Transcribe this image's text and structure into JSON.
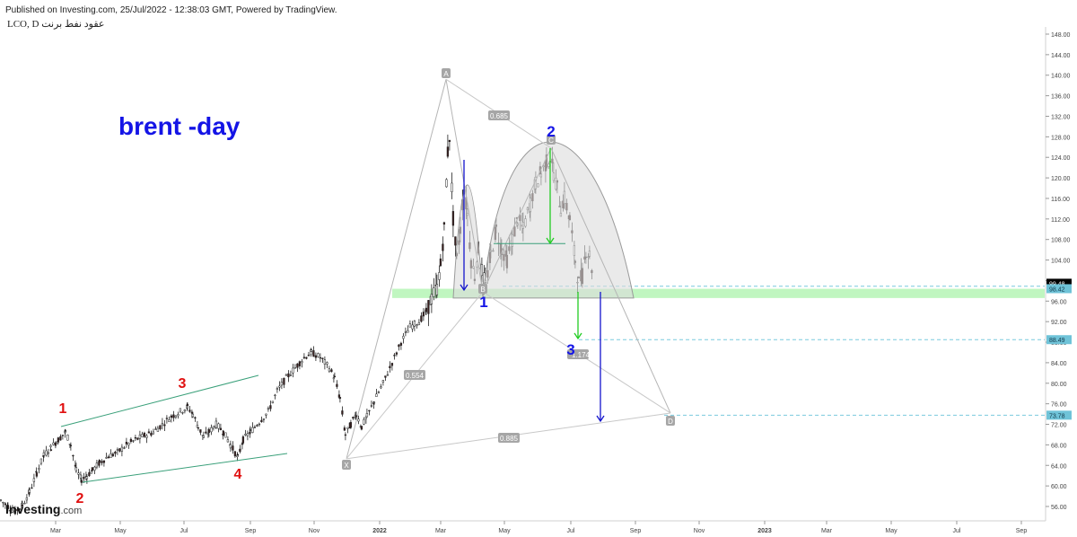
{
  "header": {
    "published": "Published on Investing.com, 25/Jul/2022 - 12:38:03 GMT, Powered by TradingView.",
    "symbol": "LCO, D  عقود نفط برنت"
  },
  "brand": {
    "name": "Investing",
    "suffix": ".com"
  },
  "chart_data": {
    "type": "candlestick",
    "title": "brent -day",
    "ylim": [
      54,
      147
    ],
    "y_ticks": [
      "56.00",
      "60.00",
      "64.00",
      "68.00",
      "72.00",
      "76.00",
      "80.00",
      "84.00",
      "88.00",
      "92.00",
      "96.00",
      "100.00",
      "104.00",
      "108.00",
      "112.00",
      "116.00",
      "120.00",
      "124.00",
      "128.00",
      "132.00",
      "136.00",
      "140.00",
      "144.00",
      "148.00"
    ],
    "x_ticks": [
      "Mar",
      "May",
      "Jul",
      "Sep",
      "Nov",
      "2022",
      "Mar",
      "May",
      "Jul",
      "Sep",
      "Nov",
      "2023",
      "Mar",
      "May",
      "Jul",
      "Sep"
    ],
    "price_labels": [
      {
        "value": 99.48,
        "text": "99.48",
        "color": "#000000"
      },
      {
        "value": 98.42,
        "text": "98.42",
        "color": "#6fc3d8"
      },
      {
        "value": 88.49,
        "text": "88.49",
        "color": "#6fc3d8"
      },
      {
        "value": 73.78,
        "text": "73.78",
        "color": "#6fc3d8"
      }
    ],
    "wave_labels_red": [
      "1",
      "2",
      "3",
      "4"
    ],
    "wave_labels_blue": [
      "1",
      "2",
      "3"
    ],
    "pattern_points": [
      "X",
      "A",
      "B",
      "C",
      "D"
    ],
    "ratios": [
      "0.685",
      "0.554",
      "0.885"
    ],
    "partial_label": "1.174",
    "support_zone": [
      96.6,
      98.4
    ],
    "price_path": [
      [
        0,
        57.2
      ],
      [
        8,
        56.0
      ],
      [
        16,
        55.0
      ],
      [
        24,
        56.2
      ],
      [
        32,
        58.8
      ],
      [
        40,
        62.5
      ],
      [
        48,
        66.0
      ],
      [
        56,
        67.5
      ],
      [
        64,
        69.0
      ],
      [
        72,
        70.5
      ],
      [
        78,
        68.0
      ],
      [
        84,
        63.0
      ],
      [
        90,
        61.2
      ],
      [
        96,
        62.0
      ],
      [
        102,
        63.0
      ],
      [
        110,
        64.5
      ],
      [
        120,
        65.8
      ],
      [
        130,
        66.5
      ],
      [
        140,
        68.0
      ],
      [
        150,
        69.0
      ],
      [
        160,
        69.8
      ],
      [
        170,
        70.5
      ],
      [
        180,
        72.0
      ],
      [
        190,
        73.5
      ],
      [
        200,
        74.5
      ],
      [
        208,
        75.4
      ],
      [
        214,
        74.0
      ],
      [
        220,
        71.5
      ],
      [
        226,
        69.5
      ],
      [
        232,
        70.5
      ],
      [
        240,
        72.0
      ],
      [
        248,
        70.5
      ],
      [
        256,
        68.0
      ],
      [
        264,
        65.5
      ],
      [
        270,
        69.0
      ],
      [
        278,
        70.5
      ],
      [
        288,
        72.5
      ],
      [
        298,
        74.5
      ],
      [
        308,
        78.5
      ],
      [
        318,
        81.0
      ],
      [
        328,
        83.0
      ],
      [
        338,
        85.0
      ],
      [
        346,
        86.0
      ],
      [
        356,
        85.0
      ],
      [
        366,
        83.0
      ],
      [
        372,
        81.0
      ],
      [
        378,
        77.0
      ],
      [
        384,
        70.0
      ],
      [
        390,
        72.0
      ],
      [
        396,
        74.0
      ],
      [
        402,
        71.5
      ],
      [
        408,
        73.5
      ],
      [
        416,
        76.5
      ],
      [
        426,
        80.0
      ],
      [
        436,
        84.0
      ],
      [
        446,
        88.0
      ],
      [
        456,
        91.0
      ],
      [
        466,
        92.0
      ],
      [
        474,
        94.0
      ],
      [
        480,
        96.5
      ],
      [
        486,
        98.5
      ],
      [
        490,
        103.0
      ],
      [
        494,
        110.0
      ],
      [
        498,
        125.0
      ],
      [
        500,
        128.0
      ],
      [
        504,
        112.0
      ],
      [
        508,
        104.0
      ],
      [
        512,
        110.0
      ],
      [
        516,
        118.0
      ],
      [
        520,
        113.0
      ],
      [
        524,
        104.0
      ],
      [
        528,
        101.0
      ],
      [
        532,
        106.0
      ],
      [
        536,
        102.0
      ],
      [
        540,
        99.0
      ],
      [
        546,
        105.0
      ],
      [
        552,
        110.0
      ],
      [
        558,
        106.0
      ],
      [
        564,
        104.0
      ],
      [
        570,
        108.0
      ],
      [
        576,
        112.0
      ],
      [
        582,
        110.0
      ],
      [
        590,
        115.0
      ],
      [
        596,
        119.0
      ],
      [
        602,
        121.0
      ],
      [
        608,
        123.0
      ],
      [
        612,
        124.0
      ],
      [
        616,
        121.0
      ],
      [
        620,
        118.0
      ],
      [
        624,
        114.0
      ],
      [
        628,
        116.0
      ],
      [
        634,
        112.0
      ],
      [
        640,
        104.0
      ],
      [
        644,
        99.5
      ],
      [
        648,
        101.0
      ],
      [
        652,
        106.0
      ],
      [
        656,
        105.0
      ],
      [
        660,
        101.0
      ]
    ]
  }
}
